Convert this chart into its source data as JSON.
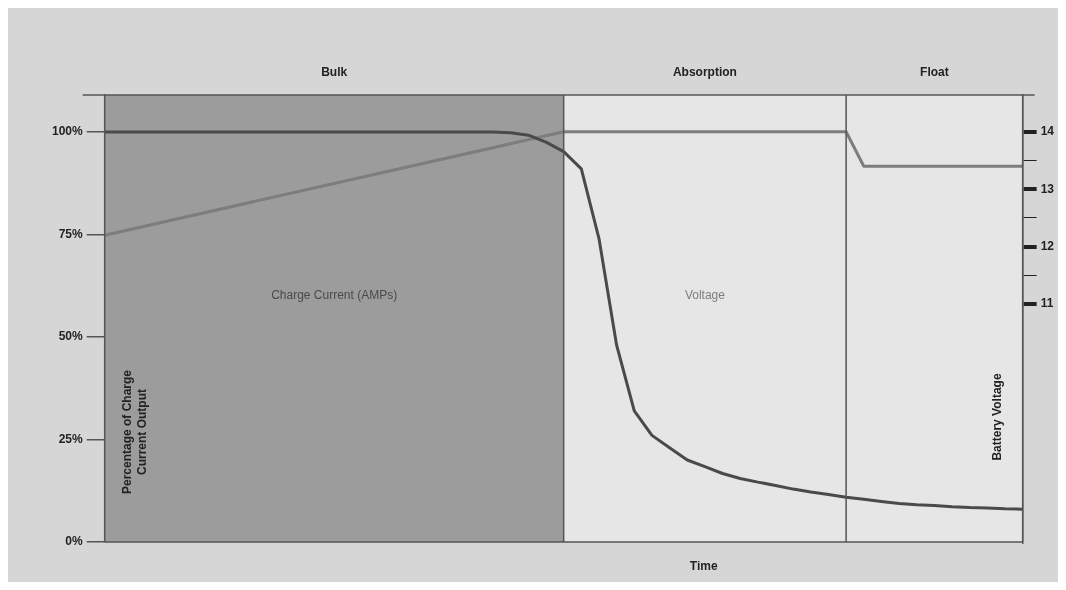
{
  "chart_data": {
    "type": "line",
    "xlabel": "Time",
    "ylabel": "Percentage of Charge Current Output",
    "y2label": "Battery Voltage",
    "annotations": [
      "Bulk",
      "Absorption",
      "Float"
    ],
    "categories": [
      null,
      null,
      null,
      null,
      null,
      null,
      null,
      null,
      null,
      null,
      null,
      null,
      null,
      null,
      null,
      null,
      null,
      null,
      null,
      null,
      null,
      null,
      null,
      null,
      null,
      null,
      null,
      null,
      null,
      null,
      null,
      null,
      null,
      null,
      null,
      null,
      null,
      null,
      null,
      null,
      null,
      null,
      null,
      null,
      null,
      null,
      null,
      null,
      null,
      null,
      null,
      null,
      null
    ],
    "ylim": [
      0,
      109
    ],
    "y2lim": [
      6.86,
      14.64
    ],
    "yticks": [
      {
        "value": 0,
        "label": "0%"
      },
      {
        "value": 25,
        "label": "25%"
      },
      {
        "value": 50,
        "label": "50%"
      },
      {
        "value": 75,
        "label": "75%"
      },
      {
        "value": 100,
        "label": "100%"
      }
    ],
    "y2ticks": [
      11,
      {
        "value": 11.5,
        "label": null
      },
      12,
      {
        "value": 12.5,
        "label": null
      },
      13,
      {
        "value": 13.5,
        "label": null
      },
      14
    ],
    "tick_labels": "y",
    "series": [
      {
        "name": "Charge Current (AMPs)",
        "color": "#4a4a4a",
        "values": [
          100,
          100,
          100,
          100,
          100,
          100,
          100,
          100,
          100,
          100,
          100,
          100,
          100,
          100,
          100,
          100,
          100,
          100,
          100,
          100,
          100,
          100,
          100,
          99.8,
          99.2,
          97.5,
          95.2,
          91,
          74,
          48,
          32,
          26,
          23,
          20,
          18.4,
          16.7,
          15.5,
          14.6,
          13.8,
          12.9,
          12.2,
          11.6,
          10.9,
          10.4,
          9.9,
          9.4,
          9.1,
          8.9,
          8.6,
          8.4,
          8.3,
          8.1,
          8
        ]
      },
      {
        "name": "Voltage",
        "axis": "y2",
        "color": "#7d7d7d",
        "values": [
          12.2,
          null,
          null,
          null,
          null,
          null,
          null,
          null,
          null,
          null,
          null,
          null,
          null,
          null,
          null,
          null,
          null,
          null,
          null,
          null,
          null,
          null,
          null,
          null,
          null,
          null,
          14,
          null,
          null,
          null,
          null,
          null,
          null,
          null,
          null,
          null,
          null,
          null,
          null,
          null,
          null,
          null,
          14,
          13.4,
          null,
          null,
          null,
          null,
          null,
          null,
          null,
          null,
          13.4
        ]
      }
    ]
  }
}
